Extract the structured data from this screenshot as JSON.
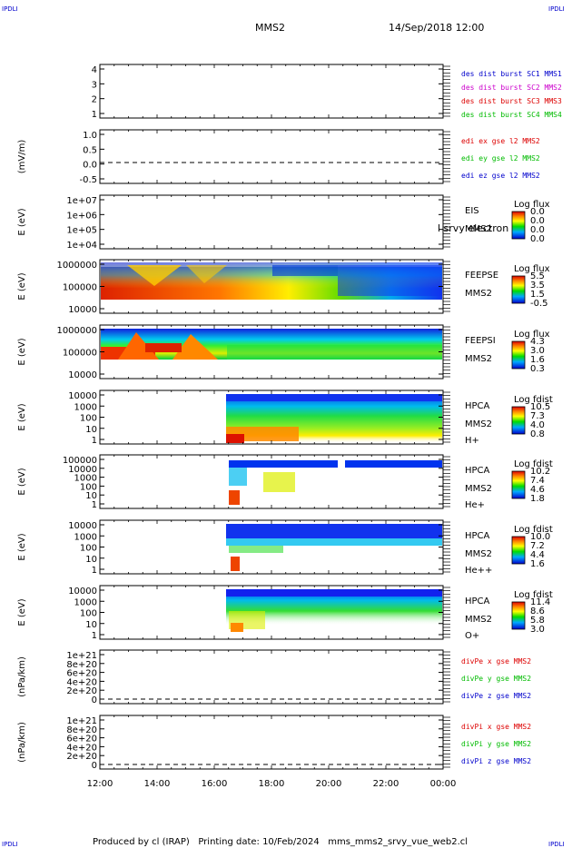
{
  "header": {
    "corner_label": "IPDLI",
    "spacecraft": "MMS2",
    "datetime": "14/Sep/2018 12:00"
  },
  "footer": {
    "text": "Produced by cl (IRAP)   Printing date: 10/Feb/2024   mms_mms2_srvy_vue_web2.cl"
  },
  "colors": {
    "blue": "#0000cc",
    "red": "#dd0000",
    "green": "#00bb00",
    "magenta": "#cc00cc"
  },
  "chart_data": {
    "type": "heatmap",
    "x_ticks": [
      "12:00",
      "14:00",
      "16:00",
      "18:00",
      "20:00",
      "22:00",
      "00:00"
    ],
    "panels": [
      {
        "id": "burst",
        "ylabel": "",
        "yticks": [
          "4",
          "3",
          "2",
          "1"
        ],
        "legend": [
          {
            "text": "des dist burst SC1 MMS1",
            "color": "#0000cc"
          },
          {
            "text": "des dist burst SC2 MMS2",
            "color": "#cc00cc"
          },
          {
            "text": "des dist burst SC3 MMS3",
            "color": "#dd0000"
          },
          {
            "text": "des dist burst SC4 MMS4",
            "color": "#00bb00"
          }
        ]
      },
      {
        "id": "edi",
        "ylabel": "(mV/m)",
        "yticks": [
          "1.0",
          "0.5",
          "0.0",
          "-0.5"
        ],
        "legend": [
          {
            "text": "edi ex gse l2 MMS2",
            "color": "#dd0000"
          },
          {
            "text": "edi ey gse l2 MMS2",
            "color": "#00bb00"
          },
          {
            "text": "edi ez gse l2 MMS2",
            "color": "#0000cc"
          }
        ]
      },
      {
        "id": "eis",
        "ylabel": "E (eV)",
        "yticks": [
          "1e+07",
          "1e+06",
          "1e+05",
          "1e+04"
        ],
        "labels": [
          "EIS",
          "MMS2"
        ],
        "overlay": "l srvy electron to",
        "cbar_title": "Log flux",
        "cbar_ticks": [
          "0.0",
          "0.0",
          "0.0",
          "0.0"
        ]
      },
      {
        "id": "feepse",
        "ylabel": "E (eV)",
        "yticks": [
          "1000000",
          "100000",
          "10000"
        ],
        "labels": [
          "FEEPSE",
          "MMS2"
        ],
        "cbar_title": "Log flux",
        "cbar_ticks": [
          "5.5",
          "3.5",
          "1.5",
          "-0.5"
        ]
      },
      {
        "id": "feepsi",
        "ylabel": "E (eV)",
        "yticks": [
          "1000000",
          "100000",
          "10000"
        ],
        "labels": [
          "FEEPSI",
          "MMS2"
        ],
        "cbar_title": "Log flux",
        "cbar_ticks": [
          "4.3",
          "3.0",
          "1.6",
          "0.3"
        ]
      },
      {
        "id": "hpca_h",
        "ylabel": "E (eV)",
        "yticks": [
          "10000",
          "1000",
          "100",
          "10",
          "1"
        ],
        "labels": [
          "HPCA",
          "MMS2",
          "H+"
        ],
        "cbar_title": "Log fdist",
        "cbar_ticks": [
          "10.5",
          "7.3",
          "4.0",
          "0.8"
        ]
      },
      {
        "id": "hpca_he",
        "ylabel": "E (eV)",
        "yticks": [
          "100000",
          "10000",
          "1000",
          "100",
          "10",
          "1"
        ],
        "labels": [
          "HPCA",
          "MMS2",
          "He+"
        ],
        "cbar_title": "Log fdist",
        "cbar_ticks": [
          "10.2",
          "7.4",
          "4.6",
          "1.8"
        ]
      },
      {
        "id": "hpca_he2",
        "ylabel": "E (eV)",
        "yticks": [
          "10000",
          "1000",
          "100",
          "10",
          "1"
        ],
        "labels": [
          "HPCA",
          "MMS2",
          "He++"
        ],
        "cbar_title": "Log fdist",
        "cbar_ticks": [
          "10.0",
          "7.2",
          "4.4",
          "1.6"
        ]
      },
      {
        "id": "hpca_o",
        "ylabel": "E (eV)",
        "yticks": [
          "10000",
          "1000",
          "100",
          "10",
          "1"
        ],
        "labels": [
          "HPCA",
          "MMS2",
          "O+"
        ],
        "cbar_title": "Log fdist",
        "cbar_ticks": [
          "11.4",
          "8.6",
          "5.8",
          "3.0"
        ]
      },
      {
        "id": "divpe",
        "ylabel": "(nPa/km)",
        "yticks": [
          "1e+21",
          "8e+20",
          "6e+20",
          "4e+20",
          "2e+20",
          "0"
        ],
        "legend": [
          {
            "text": "divPe x gse MMS2",
            "color": "#dd0000"
          },
          {
            "text": "divPe y gse MMS2",
            "color": "#00bb00"
          },
          {
            "text": "divPe z gse MMS2",
            "color": "#0000cc"
          }
        ]
      },
      {
        "id": "divpi",
        "ylabel": "(nPa/km)",
        "yticks": [
          "1e+21",
          "8e+20",
          "6e+20",
          "4e+20",
          "2e+20",
          "0"
        ],
        "legend": [
          {
            "text": "divPi x gse MMS2",
            "color": "#dd0000"
          },
          {
            "text": "divPi y gse MMS2",
            "color": "#00bb00"
          },
          {
            "text": "divPi z gse MMS2",
            "color": "#0000cc"
          }
        ]
      }
    ]
  }
}
